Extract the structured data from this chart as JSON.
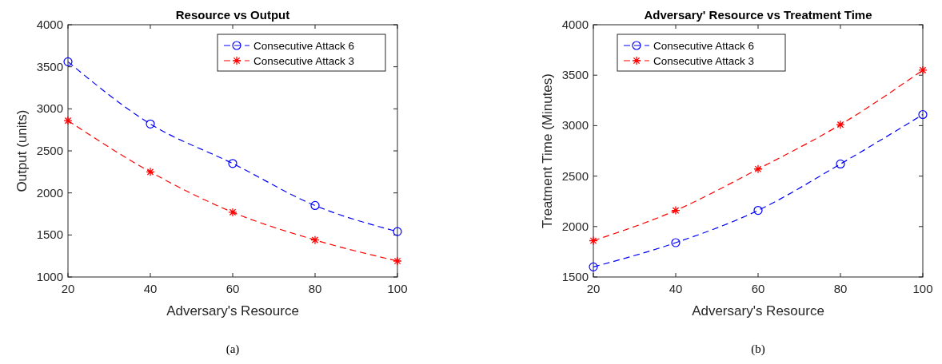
{
  "chart_data": [
    {
      "type": "line",
      "title": "Resource vs Output",
      "xlabel": "Adversary's Resource",
      "ylabel": "Output (units)",
      "x": [
        20,
        40,
        60,
        80,
        100
      ],
      "xlim": [
        20,
        100
      ],
      "xticks": [
        20,
        40,
        60,
        80,
        100
      ],
      "ylim": [
        1000,
        4000
      ],
      "yticks": [
        1000,
        1500,
        2000,
        2500,
        3000,
        3500,
        4000
      ],
      "line_style": "dashed",
      "legend": "top right",
      "annotations": [
        "(a)"
      ],
      "series": [
        {
          "name": "Consecutive Attack 6",
          "color": "#0000ff",
          "marker": "circle",
          "values": [
            3560,
            2820,
            2350,
            1850,
            1540
          ]
        },
        {
          "name": "Consecutive Attack 3",
          "color": "#ff0000",
          "marker": "cross",
          "values": [
            2860,
            2250,
            1770,
            1440,
            1190
          ]
        }
      ]
    },
    {
      "type": "line",
      "title": "Adversary' Resource vs Treatment Time",
      "xlabel": "Adversary's Resource",
      "ylabel": "Treatment Time (Minutes)",
      "x": [
        20,
        40,
        60,
        80,
        100
      ],
      "xlim": [
        20,
        100
      ],
      "xticks": [
        20,
        40,
        60,
        80,
        100
      ],
      "ylim": [
        1500,
        4000
      ],
      "yticks": [
        1500,
        2000,
        2500,
        3000,
        3500,
        4000
      ],
      "line_style": "dashed",
      "legend": "top left",
      "annotations": [
        "(b)"
      ],
      "series": [
        {
          "name": "Consecutive Attack 6",
          "color": "#0000ff",
          "marker": "circle",
          "values": [
            1600,
            1840,
            2160,
            2620,
            3110
          ]
        },
        {
          "name": "Consecutive Attack 3",
          "color": "#ff0000",
          "marker": "cross",
          "values": [
            1860,
            2160,
            2570,
            3010,
            3550
          ]
        }
      ]
    }
  ]
}
